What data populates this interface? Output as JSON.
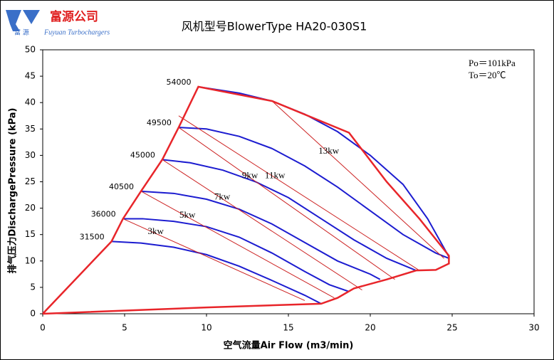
{
  "logo": {
    "name": "富源公司",
    "subtitle": "Fuyuan Turbochargers",
    "mark": "富 源"
  },
  "chart_data": {
    "type": "line",
    "title": "风机型号BlowerType HA20-030S1",
    "x_label": "空气流量Air Flow (m3/min)",
    "y_label": "排气压力DischargePressure (kPa)",
    "annotations": [
      "Po＝101kPa",
      "To＝20℃"
    ],
    "xlim": [
      0,
      30
    ],
    "ylim": [
      0,
      50
    ],
    "xticks": [
      0,
      5,
      10,
      15,
      20,
      25,
      30
    ],
    "yticks": [
      0,
      5,
      10,
      15,
      20,
      25,
      30,
      35,
      40,
      45,
      50
    ],
    "series": [
      {
        "name": "31500",
        "color": "#1c1cd0",
        "x": [
          4.2,
          6,
          8,
          10,
          12,
          14,
          16,
          17
        ],
        "values": [
          13.7,
          13.4,
          12.6,
          11.2,
          9,
          6.3,
          3.5,
          1.9
        ]
      },
      {
        "name": "36000",
        "color": "#1c1cd0",
        "x": [
          4.9,
          6.1,
          8,
          10,
          12,
          14,
          16,
          17.5,
          18.7
        ],
        "values": [
          18,
          18,
          17.5,
          16.5,
          14.5,
          11.5,
          8,
          5.5,
          4.2
        ]
      },
      {
        "name": "40500",
        "color": "#1c1cd0",
        "x": [
          6,
          8,
          10,
          12,
          14,
          16,
          18,
          20,
          20.6
        ],
        "values": [
          23.2,
          22.8,
          21.7,
          19.8,
          17,
          13.5,
          10,
          7.5,
          6.5
        ]
      },
      {
        "name": "45000",
        "color": "#1c1cd0",
        "x": [
          7.3,
          9,
          11,
          13,
          15,
          17,
          19,
          21,
          22.8
        ],
        "values": [
          29.2,
          28.6,
          27.2,
          25,
          22,
          18,
          14,
          10.5,
          8.2
        ]
      },
      {
        "name": "49500",
        "color": "#1c1cd0",
        "x": [
          8.3,
          10,
          12,
          14,
          16,
          18,
          20,
          22,
          24,
          24.8
        ],
        "values": [
          35.3,
          35,
          33.6,
          31.3,
          28,
          24,
          19.5,
          15,
          11.5,
          10.5
        ]
      },
      {
        "name": "54000",
        "color": "#1c1cd0",
        "x": [
          9.5,
          12,
          14,
          16,
          18,
          20,
          22,
          23.5,
          24.8
        ],
        "values": [
          43,
          41.8,
          40.3,
          37.8,
          34.5,
          30,
          24.5,
          18,
          10.8
        ]
      },
      {
        "name": "3kw",
        "color": "#cc2222",
        "x": [
          4.9,
          16
        ],
        "values": [
          18,
          2.5
        ]
      },
      {
        "name": "5kw",
        "color": "#cc2222",
        "x": [
          6,
          17.8
        ],
        "values": [
          23.2,
          3
        ]
      },
      {
        "name": "7kw",
        "color": "#cc2222",
        "x": [
          7.3,
          19.5
        ],
        "values": [
          29.2,
          4.5
        ]
      },
      {
        "name": "9kw",
        "color": "#cc2222",
        "x": [
          8.3,
          21.5
        ],
        "values": [
          35.3,
          6.5
        ]
      },
      {
        "name": "11kw",
        "color": "#cc2222",
        "x": [
          8.3,
          23
        ],
        "values": [
          37.5,
          8.2
        ]
      },
      {
        "name": "13kw",
        "color": "#cc2222",
        "x": [
          14,
          24.5
        ],
        "values": [
          40.3,
          10.5
        ]
      },
      {
        "color": "#e8252a",
        "x": [
          0,
          4.2,
          4.9,
          6,
          7.3,
          8.3,
          9.5,
          14,
          18.7,
          21,
          23,
          24.8,
          24.8,
          24,
          22.8,
          21,
          19,
          18,
          17,
          10,
          0
        ],
        "values": [
          0,
          13.7,
          18,
          23.2,
          29.2,
          35.3,
          43,
          40.3,
          34.3,
          25,
          18,
          11,
          9.5,
          8.3,
          8.2,
          6.5,
          4.8,
          3,
          1.9,
          1.2,
          0
        ]
      }
    ]
  }
}
